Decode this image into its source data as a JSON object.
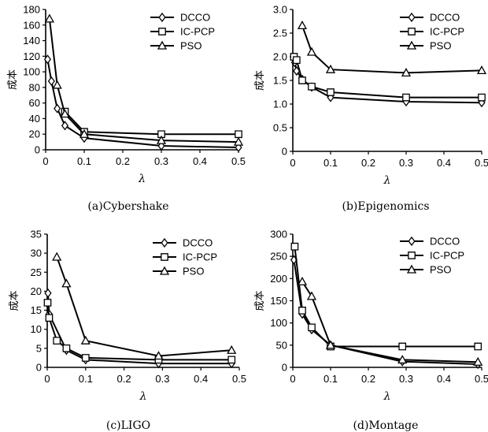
{
  "chart_data": [
    {
      "type": "line",
      "caption": "(a)Cybershake",
      "xlabel": "λ",
      "ylabel": "成本",
      "xlim": [
        0,
        0.5
      ],
      "ylim": [
        0,
        180
      ],
      "xticks": [
        "0",
        "0.1",
        "0.2",
        "0.3",
        "0.4",
        "0.5"
      ],
      "yticks": [
        "0",
        "20",
        "40",
        "60",
        "80",
        "100",
        "120",
        "140",
        "160",
        "180"
      ],
      "legend_position": "top-right",
      "series": [
        {
          "name": "DCCO",
          "marker": "diamond",
          "x": [
            0.005,
            0.015,
            0.03,
            0.05,
            0.1,
            0.3,
            0.5
          ],
          "y": [
            116,
            88,
            53,
            31,
            15,
            5,
            3
          ]
        },
        {
          "name": "IC-PCP",
          "marker": "square",
          "x": [
            0.05,
            0.1,
            0.3,
            0.5
          ],
          "y": [
            49,
            23,
            20,
            20
          ]
        },
        {
          "name": "PSO",
          "marker": "triangle",
          "x": [
            0.01,
            0.03,
            0.05,
            0.1,
            0.3,
            0.5
          ],
          "y": [
            168,
            83,
            46,
            20,
            12,
            10
          ]
        }
      ]
    },
    {
      "type": "line",
      "caption": "(b)Epigenomics",
      "xlabel": "λ",
      "ylabel": "成本",
      "xlim": [
        0,
        0.5
      ],
      "ylim": [
        0,
        3.0
      ],
      "xticks": [
        "0",
        "0.1",
        "0.2",
        "0.3",
        "0.4",
        "0.5"
      ],
      "yticks": [
        "0",
        "0.5",
        "1.0",
        "1.5",
        "2.0",
        "2.5",
        "3.0"
      ],
      "legend_position": "top-right",
      "series": [
        {
          "name": "DCCO",
          "marker": "diamond",
          "x": [
            0.005,
            0.01,
            0.025,
            0.05,
            0.1,
            0.3,
            0.5
          ],
          "y": [
            1.88,
            1.7,
            1.52,
            1.36,
            1.14,
            1.05,
            1.03
          ]
        },
        {
          "name": "IC-PCP",
          "marker": "square",
          "x": [
            0.003,
            0.01,
            0.025,
            0.05,
            0.1,
            0.3,
            0.5
          ],
          "y": [
            2.0,
            1.93,
            1.5,
            1.37,
            1.25,
            1.14,
            1.14
          ]
        },
        {
          "name": "PSO",
          "marker": "triangle",
          "x": [
            0.025,
            0.05,
            0.1,
            0.3,
            0.5
          ],
          "y": [
            2.66,
            2.1,
            1.73,
            1.66,
            1.71
          ]
        }
      ]
    },
    {
      "type": "line",
      "caption": "(c)LIGO",
      "xlabel": "λ",
      "ylabel": "成本",
      "xlim": [
        0,
        0.5
      ],
      "ylim": [
        0,
        35
      ],
      "xticks": [
        "0",
        "0.1",
        "0.2",
        "0.3",
        "0.4",
        "0.5"
      ],
      "yticks": [
        "0",
        "5",
        "10",
        "15",
        "20",
        "25",
        "30",
        "35"
      ],
      "legend_position": "top-right",
      "series": [
        {
          "name": "DCCO",
          "marker": "diamond",
          "x": [
            0.002,
            0.005,
            0.05,
            0.1,
            0.29,
            0.48
          ],
          "y": [
            19.5,
            14,
            4.5,
            2,
            1,
            1
          ]
        },
        {
          "name": "IC-PCP",
          "marker": "square",
          "x": [
            0.001,
            0.005,
            0.025,
            0.05,
            0.1,
            0.29,
            0.48
          ],
          "y": [
            17,
            13,
            7,
            5,
            2.5,
            2,
            2
          ]
        },
        {
          "name": "PSO",
          "marker": "triangle",
          "x": [
            0.025,
            0.05,
            0.1,
            0.29,
            0.48
          ],
          "y": [
            29,
            22,
            7,
            3,
            4.5
          ]
        }
      ]
    },
    {
      "type": "line",
      "caption": "(d)Montage",
      "xlabel": "λ",
      "ylabel": "成本",
      "xlim": [
        0,
        0.5
      ],
      "ylim": [
        0,
        300
      ],
      "xticks": [
        "0",
        "0.1",
        "0.2",
        "0.3",
        "0.4",
        "0.5"
      ],
      "yticks": [
        "0",
        "50",
        "100",
        "150",
        "200",
        "250",
        "300"
      ],
      "legend_position": "top-right",
      "series": [
        {
          "name": "DCCO",
          "marker": "diamond",
          "x": [
            0.003,
            0.025,
            0.05,
            0.1,
            0.29,
            0.49
          ],
          "y": [
            242,
            120,
            85,
            50,
            13,
            7
          ]
        },
        {
          "name": "IC-PCP",
          "marker": "square",
          "x": [
            0.005,
            0.025,
            0.05,
            0.1,
            0.29,
            0.49
          ],
          "y": [
            272,
            128,
            90,
            47,
            47,
            47
          ]
        },
        {
          "name": "PSO",
          "marker": "triangle",
          "x": [
            0.025,
            0.05,
            0.1,
            0.29,
            0.49
          ],
          "y": [
            193,
            160,
            50,
            17,
            12
          ]
        }
      ]
    }
  ]
}
